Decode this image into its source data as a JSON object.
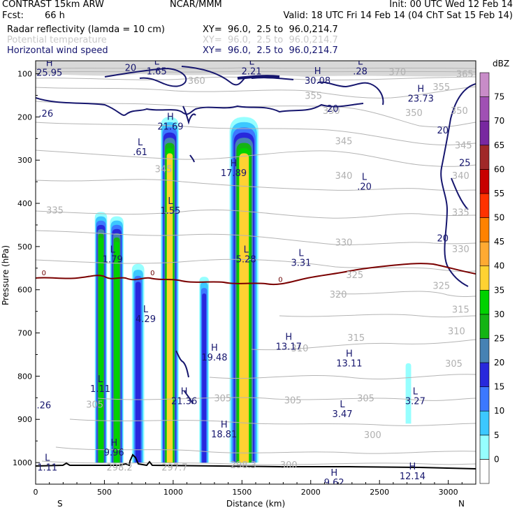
{
  "header": {
    "model": "CONTRAST 15km ARW",
    "center": "NCAR/MMM",
    "init": "Init: 00 UTC Wed 12 Feb 14",
    "fcst_label": "Fcst:",
    "fcst_value": "66 h",
    "valid": "Valid: 18 UTC Fri 14 Feb 14 (04 ChT Sat 15 Feb 14)",
    "fields": [
      {
        "name": "Radar reflectivity (lamda = 10 cm)",
        "xy": "XY=  96.0,  2.5 to  96.0,214.7",
        "color": "#000000"
      },
      {
        "name": "Potential temperature",
        "xy": "XY=  96.0,  2.5 to  96.0,214.7",
        "color": "#c8c8c8"
      },
      {
        "name": "Horizontal wind speed",
        "xy": "XY=  96.0,  2.5 to  96.0,214.7",
        "color": "#13136e"
      }
    ]
  },
  "chart_data": {
    "type": "cross-section",
    "xlabel": "Distance (km)",
    "ylabel": "Pressure (hPa)",
    "xlim": [
      0,
      3200
    ],
    "ylim": [
      1050,
      70
    ],
    "x_ticks": [
      0,
      500,
      1000,
      1500,
      2000,
      2500,
      3000
    ],
    "y_ticks": [
      100,
      200,
      300,
      400,
      500,
      600,
      700,
      800,
      900,
      1000
    ],
    "x_end_labels": {
      "left": "S",
      "right": "N"
    },
    "colorbar": {
      "unit": "dBZ",
      "levels": [
        0,
        5,
        10,
        15,
        20,
        25,
        30,
        35,
        40,
        45,
        50,
        55,
        60,
        65,
        70,
        75
      ],
      "colors": [
        "#ffffff",
        "#96ffff",
        "#3cc8ff",
        "#3c78ff",
        "#2828dc",
        "#4682b4",
        "#14b414",
        "#00d200",
        "#ffd232",
        "#ffaa32",
        "#ff8200",
        "#ff3200",
        "#c80000",
        "#a02828",
        "#7828a0",
        "#a050b4",
        "#c88cc8"
      ]
    },
    "reflectivity_cells": [
      {
        "x": [
          430,
          520
        ],
        "p": [
          420,
          1000
        ],
        "max_dbz": 35
      },
      {
        "x": [
          540,
          640
        ],
        "p": [
          430,
          1000
        ],
        "max_dbz": 35
      },
      {
        "x": [
          700,
          790
        ],
        "p": [
          540,
          1000
        ],
        "max_dbz": 20
      },
      {
        "x": [
          910,
          1040
        ],
        "p": [
          200,
          1000
        ],
        "max_dbz": 40
      },
      {
        "x": [
          1190,
          1260
        ],
        "p": [
          570,
          1000
        ],
        "max_dbz": 20
      },
      {
        "x": [
          1410,
          1620
        ],
        "p": [
          200,
          1000
        ],
        "max_dbz": 40
      },
      {
        "x": [
          2690,
          2730
        ],
        "p": [
          770,
          910
        ],
        "max_dbz": 5
      }
    ],
    "potential_temperature_labels": [
      {
        "text": "370",
        "x": 2630,
        "p": 95
      },
      {
        "text": "365",
        "x": 3120,
        "p": 100
      },
      {
        "text": "360",
        "x": 1170,
        "p": 115
      },
      {
        "text": "355",
        "x": 2020,
        "p": 150
      },
      {
        "text": "355",
        "x": 2950,
        "p": 130
      },
      {
        "text": "350",
        "x": 2150,
        "p": 185
      },
      {
        "text": "350",
        "x": 2750,
        "p": 190
      },
      {
        "text": "350",
        "x": 3080,
        "p": 185
      },
      {
        "text": "345",
        "x": 2240,
        "p": 255
      },
      {
        "text": "345",
        "x": 930,
        "p": 320
      },
      {
        "text": "345",
        "x": 3110,
        "p": 265
      },
      {
        "text": "340",
        "x": 2240,
        "p": 335
      },
      {
        "text": "340",
        "x": 3090,
        "p": 335
      },
      {
        "text": "335",
        "x": 140,
        "p": 415
      },
      {
        "text": "335",
        "x": 3090,
        "p": 420
      },
      {
        "text": "330",
        "x": 2240,
        "p": 490
      },
      {
        "text": "330",
        "x": 3090,
        "p": 505
      },
      {
        "text": "325",
        "x": 2320,
        "p": 565
      },
      {
        "text": "325",
        "x": 2950,
        "p": 590
      },
      {
        "text": "320",
        "x": 2200,
        "p": 610
      },
      {
        "text": "315",
        "x": 3090,
        "p": 645
      },
      {
        "text": "315",
        "x": 2330,
        "p": 710
      },
      {
        "text": "310",
        "x": 3060,
        "p": 695
      },
      {
        "text": "310",
        "x": 1920,
        "p": 735
      },
      {
        "text": "305",
        "x": 3040,
        "p": 770
      },
      {
        "text": "305",
        "x": 1360,
        "p": 850
      },
      {
        "text": "305",
        "x": 1870,
        "p": 855
      },
      {
        "text": "305",
        "x": 2400,
        "p": 850
      },
      {
        "text": "305",
        "x": 430,
        "p": 865
      },
      {
        "text": "300",
        "x": 2450,
        "p": 935
      },
      {
        "text": "300",
        "x": 1840,
        "p": 1005
      },
      {
        "text": "298.2",
        "x": 610,
        "p": 1010
      },
      {
        "text": "297.7",
        "x": 1010,
        "p": 1010
      },
      {
        "text": "298.3",
        "x": 1510,
        "p": 1005
      }
    ],
    "wind_speed_labels": [
      {
        "text": "20",
        "x": 690,
        "p": 85
      },
      {
        "text": "20",
        "x": 2160,
        "p": 180
      },
      {
        "text": "20",
        "x": 2960,
        "p": 230
      },
      {
        "text": "25",
        "x": 3120,
        "p": 305
      },
      {
        "text": "20",
        "x": 2960,
        "p": 480
      }
    ],
    "freezing_level_labels": [
      {
        "text": "0",
        "x": 60,
        "p": 560
      },
      {
        "text": "0",
        "x": 850,
        "p": 560
      },
      {
        "text": "0",
        "x": 1780,
        "p": 575
      }
    ],
    "extrema": [
      {
        "mark": "H",
        "value": "25.95",
        "x": 100,
        "p": 98,
        "color": "navy"
      },
      {
        "mark": "L",
        "value": "1.65",
        "x": 880,
        "p": 95,
        "color": "navy"
      },
      {
        "mark": "L",
        "value": "2.21",
        "x": 1570,
        "p": 95,
        "color": "navy"
      },
      {
        "mark": "H",
        "value": "30.08",
        "x": 2050,
        "p": 117,
        "color": "navy"
      },
      {
        "mark": "L",
        "value": ".28",
        "x": 2360,
        "p": 95,
        "color": "navy"
      },
      {
        "mark": "H",
        "value": "23.73",
        "x": 2800,
        "p": 158,
        "color": "navy"
      },
      {
        "mark": "",
        "value": ".26",
        "x": 75,
        "p": 193,
        "color": "navy"
      },
      {
        "mark": "H",
        "value": "21.69",
        "x": 980,
        "p": 223,
        "color": "navy"
      },
      {
        "mark": "L",
        "value": ".61",
        "x": 760,
        "p": 282,
        "color": "navy"
      },
      {
        "mark": "H",
        "value": "17.89",
        "x": 1440,
        "p": 330,
        "color": "navy"
      },
      {
        "mark": "L",
        "value": ".20",
        "x": 2390,
        "p": 362,
        "color": "navy"
      },
      {
        "mark": "L",
        "value": "1.55",
        "x": 980,
        "p": 418,
        "color": "navy"
      },
      {
        "mark": "L",
        "value": "1.79",
        "x": 560,
        "p": 530,
        "color": "navy"
      },
      {
        "mark": "L",
        "value": "5.28",
        "x": 1530,
        "p": 530,
        "color": "navy"
      },
      {
        "mark": "L",
        "value": "3.31",
        "x": 1930,
        "p": 538,
        "color": "navy"
      },
      {
        "mark": "L",
        "value": "4.29",
        "x": 800,
        "p": 668,
        "color": "navy"
      },
      {
        "mark": "H",
        "value": "13.17",
        "x": 1840,
        "p": 732,
        "color": "navy"
      },
      {
        "mark": "H",
        "value": "19.48",
        "x": 1300,
        "p": 757,
        "color": "navy"
      },
      {
        "mark": "H",
        "value": "13.11",
        "x": 2280,
        "p": 771,
        "color": "navy"
      },
      {
        "mark": "L",
        "value": "1.11",
        "x": 470,
        "p": 830,
        "color": "navy"
      },
      {
        "mark": "H",
        "value": "21.36",
        "x": 1080,
        "p": 858,
        "color": "navy"
      },
      {
        "mark": "",
        "value": ".26",
        "x": 60,
        "p": 868,
        "color": "navy"
      },
      {
        "mark": "L",
        "value": "3.27",
        "x": 2760,
        "p": 858,
        "color": "navy"
      },
      {
        "mark": "L",
        "value": "3.47",
        "x": 2230,
        "p": 888,
        "color": "navy"
      },
      {
        "mark": "H",
        "value": "18.81",
        "x": 1370,
        "p": 935,
        "color": "navy"
      },
      {
        "mark": "H",
        "value": "9.96",
        "x": 570,
        "p": 977,
        "color": "navy"
      },
      {
        "mark": "L",
        "value": "1.11",
        "x": 85,
        "p": 1012,
        "color": "navy"
      },
      {
        "mark": "H",
        "value": "9.62",
        "x": 2170,
        "p": 1047,
        "color": "navy"
      },
      {
        "mark": "H",
        "value": "12.14",
        "x": 2740,
        "p": 1032,
        "color": "navy"
      }
    ]
  }
}
